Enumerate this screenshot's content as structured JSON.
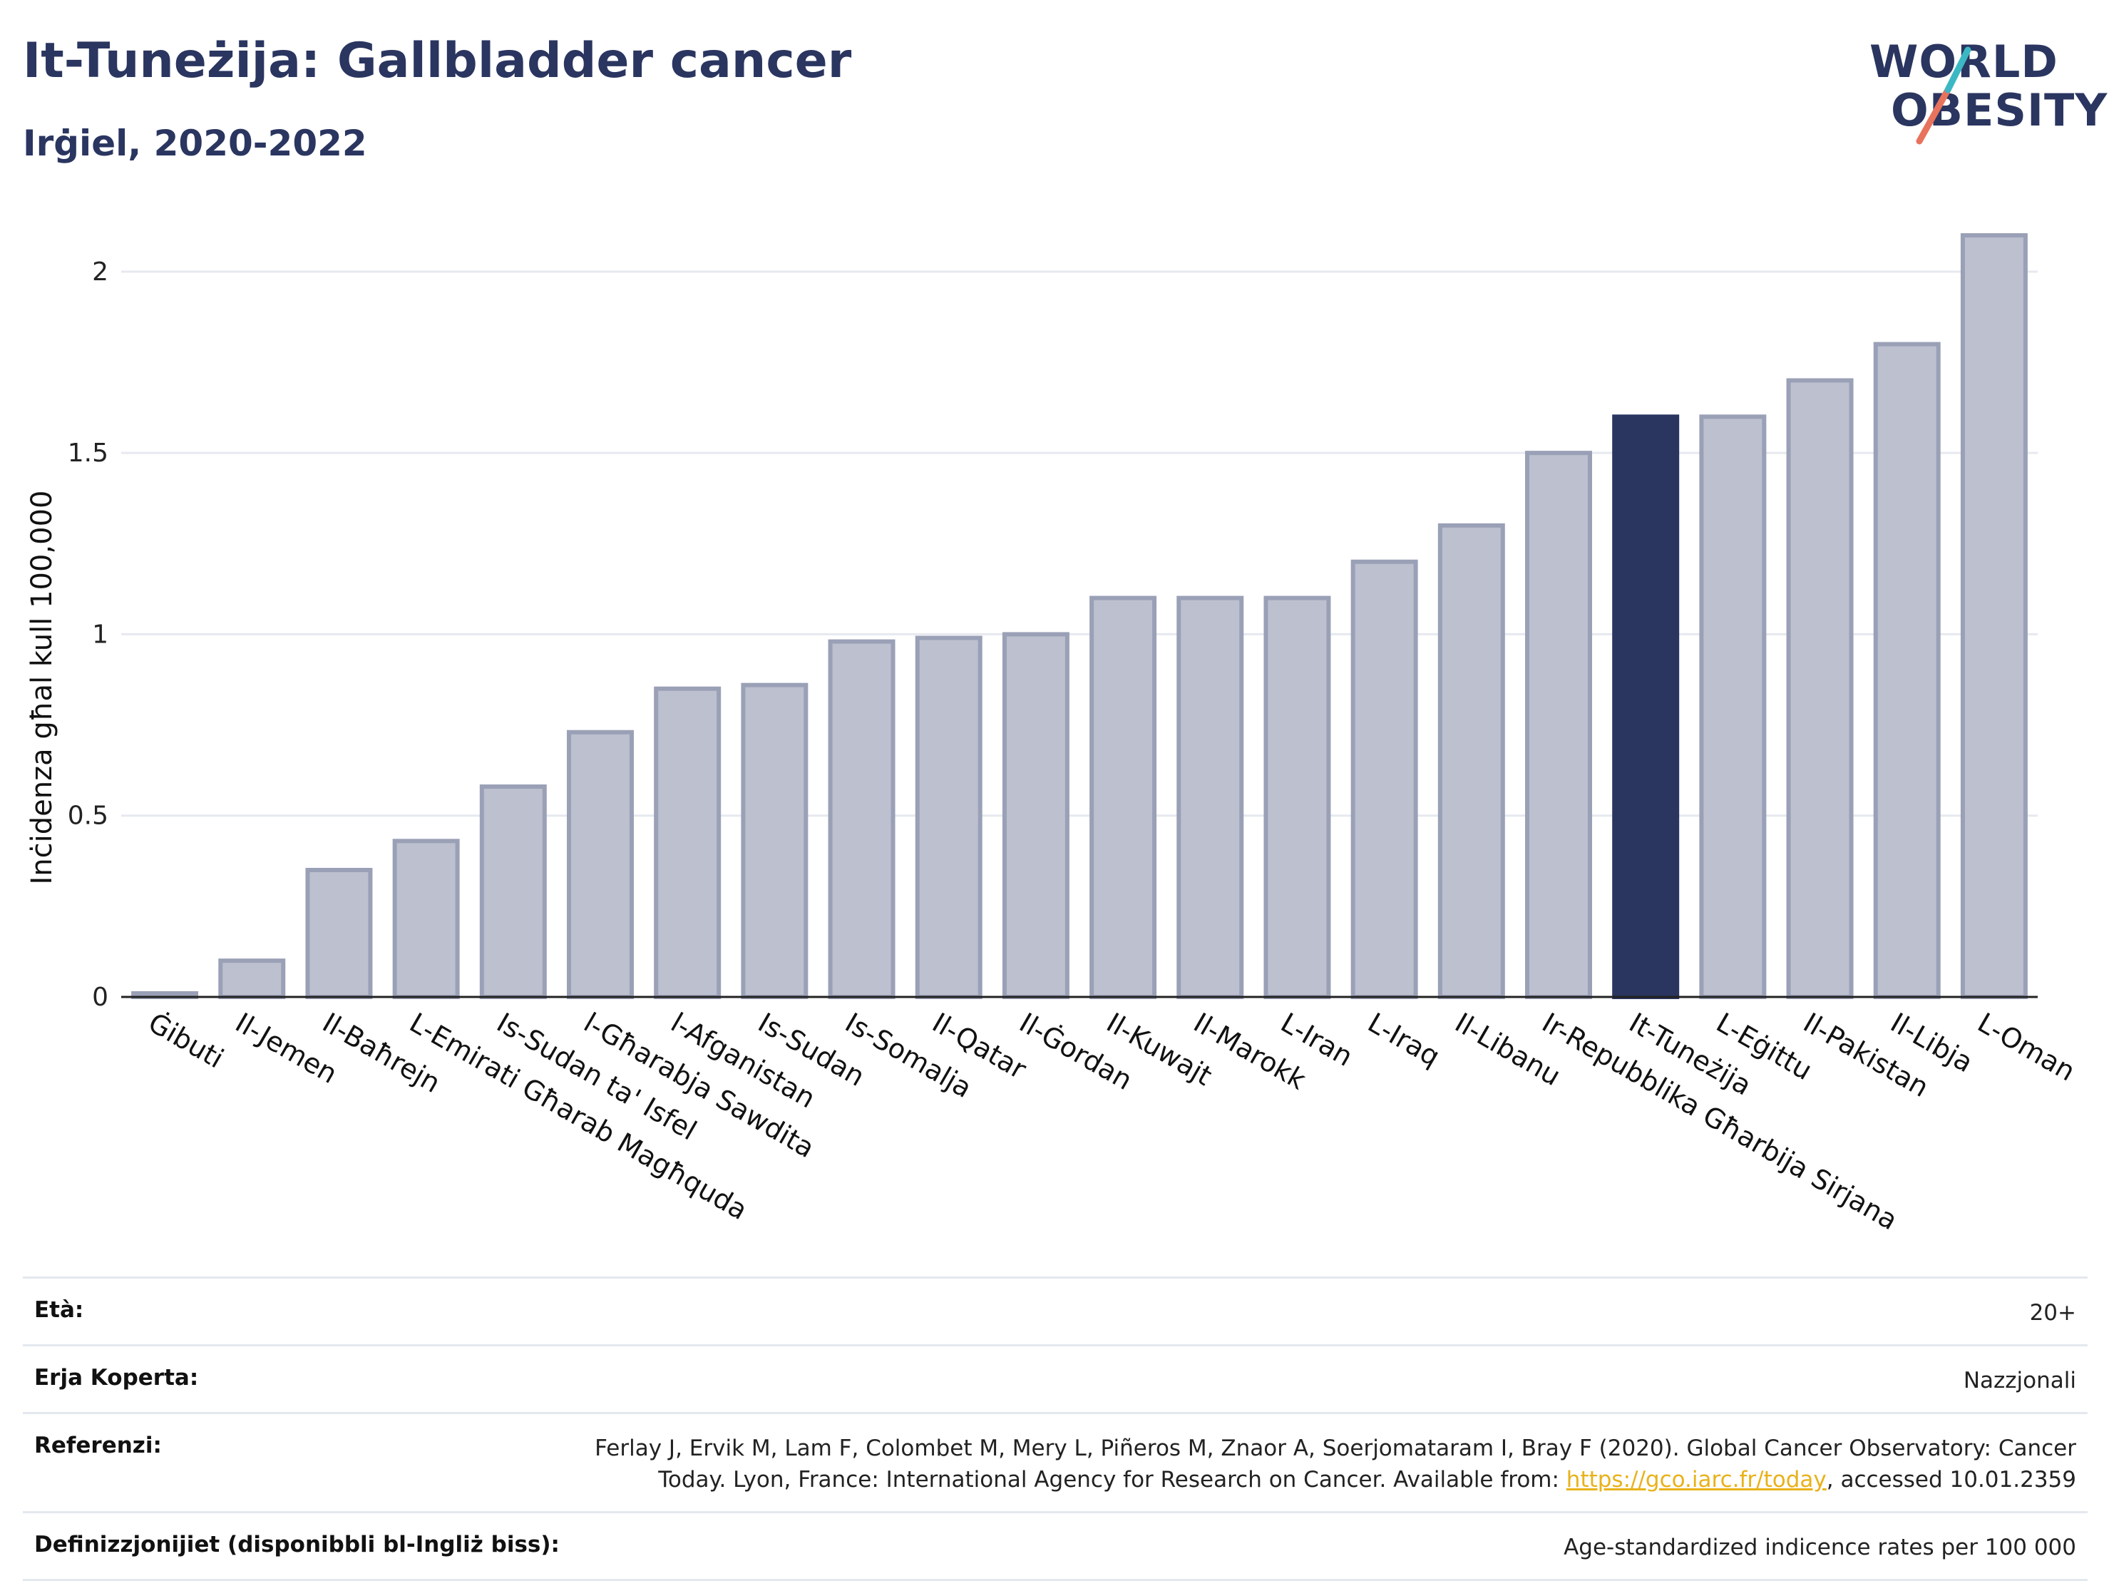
{
  "header": {
    "title": "It-Tuneżija: Gallbladder cancer",
    "subtitle": "Irġiel, 2020-2022"
  },
  "logo": {
    "word1": "WORLD",
    "word2": "OBESITY",
    "colors": {
      "navy": "#2a3560",
      "teal": "#3bb8c4",
      "coral": "#e8735c"
    }
  },
  "chart_data": {
    "type": "bar",
    "ylabel": "Inċidenza għal kull 100,000",
    "xlabel": "",
    "ylim": [
      0,
      2.1
    ],
    "yticks": [
      0,
      0.5,
      1,
      1.5,
      2
    ],
    "ytick_labels": [
      "0",
      "0.5",
      "1",
      "1.5",
      "2"
    ],
    "grid": true,
    "highlight": "It-Tuneżija",
    "colors": {
      "bar": "#bcc0cf",
      "bar_border": "#9aa0b6",
      "highlight": "#2a3560"
    },
    "categories": [
      "Ġibuti",
      "Il-Jemen",
      "Il-Baħrejn",
      "L-Emirati Għarab Magħquda",
      "Is-Sudan ta' Isfel",
      "l-Għarabja Sawdita",
      "l-Afganistan",
      "Is-Sudan",
      "Is-Somalja",
      "Il-Qatar",
      "Il-Ġordan",
      "Il-Kuwajt",
      "Il-Marokk",
      "L-Iran",
      "L-Iraq",
      "Il-Libanu",
      "Ir-Repubblika Għarbija Sirjana",
      "It-Tuneżija",
      "L-Eġittu",
      "Il-Pakistan",
      "Il-Libja",
      "L-Oman"
    ],
    "values": [
      0.01,
      0.1,
      0.35,
      0.43,
      0.58,
      0.73,
      0.85,
      0.86,
      0.98,
      0.99,
      1.0,
      1.1,
      1.1,
      1.1,
      1.2,
      1.3,
      1.5,
      1.6,
      1.6,
      1.7,
      1.8,
      2.1
    ]
  },
  "meta": {
    "age_label": "Età:",
    "age_value": "20+",
    "area_label": "Erja Koperta:",
    "area_value": "Nazzjonali",
    "ref_label": "Referenzi:",
    "ref_text_1": "Ferlay J, Ervik M, Lam F, Colombet M, Mery L, Piñeros M, Znaor A, Soerjomataram I, Bray F (2020). Global Cancer Observatory: Cancer Today. Lyon, France: International Agency for Research on Cancer. Available from: ",
    "ref_link": "https://gco.iarc.fr/today",
    "ref_text_2": ", accessed 10.01.2359",
    "def_label": "Definizzjonijiet (disponibbli bl-Ingliż biss):",
    "def_value": "Age-standardized indicence rates per 100 000"
  }
}
